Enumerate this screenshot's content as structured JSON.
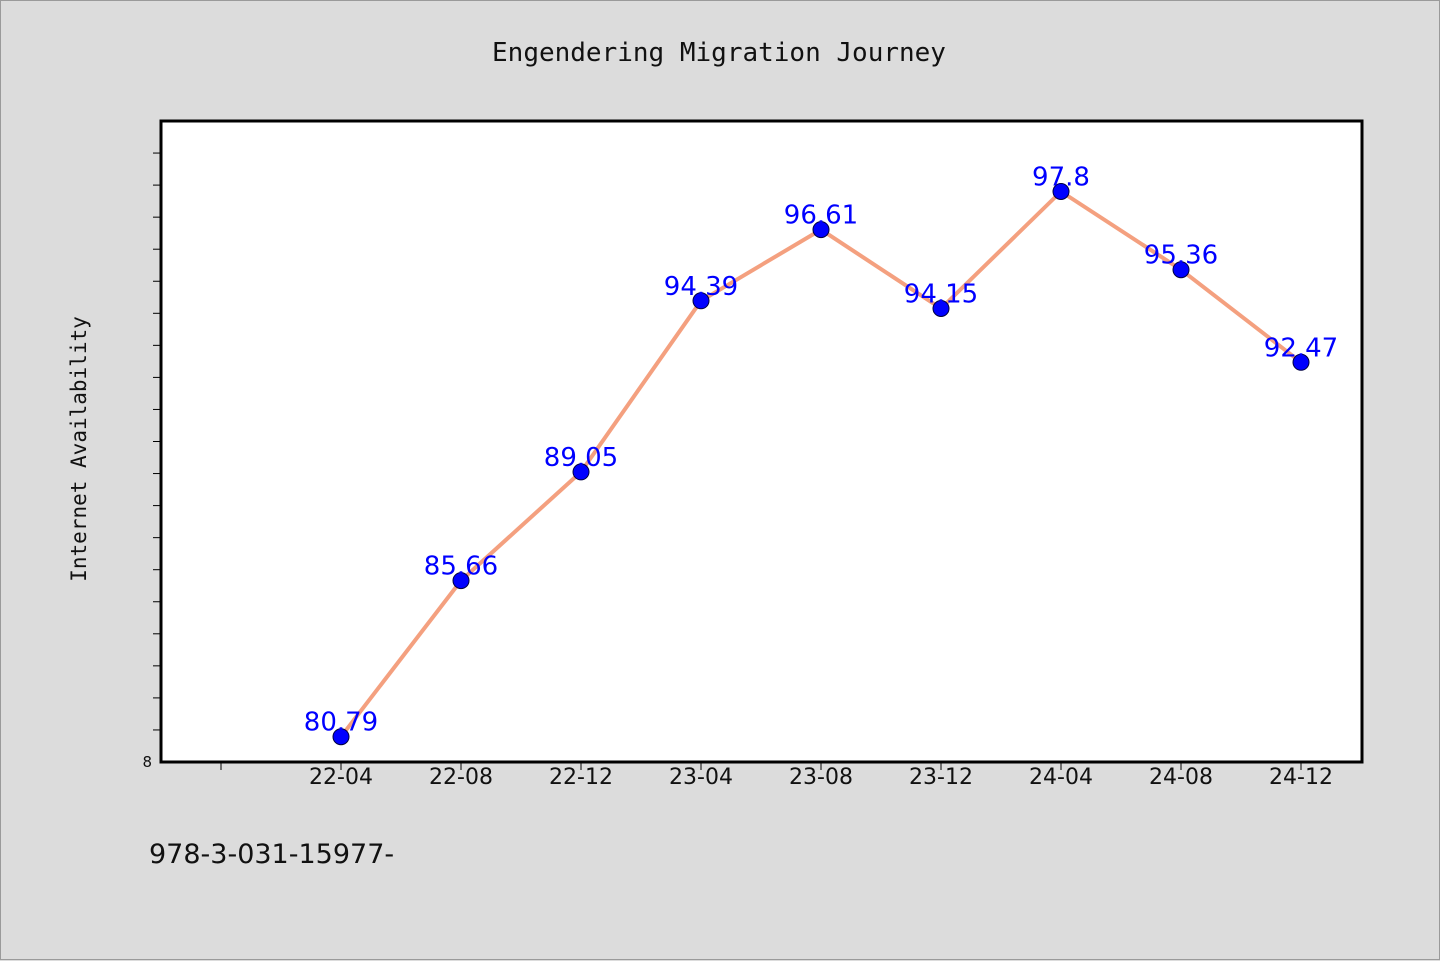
{
  "chart_data": {
    "type": "line",
    "title": "Engendering Migration Journey",
    "xlabel": "",
    "ylabel": "Internet Availability",
    "categories": [
      "22-04",
      "22-08",
      "22-12",
      "23-04",
      "23-08",
      "23-12",
      "24-04",
      "24-08",
      "24-12"
    ],
    "series": [
      {
        "values": [
          80.79,
          85.66,
          89.05,
          94.39,
          96.61,
          94.15,
          97.8,
          95.36,
          92.47
        ]
      }
    ],
    "y_tick_labels": [
      "8"
    ],
    "ylim": [
      80,
      100
    ],
    "grid": false,
    "legend": "none",
    "line_color": "#f4a07f",
    "marker_color": "#0000ff",
    "label_color": "#0000ff"
  },
  "footer": {
    "text": "978-3-031-15977-"
  }
}
